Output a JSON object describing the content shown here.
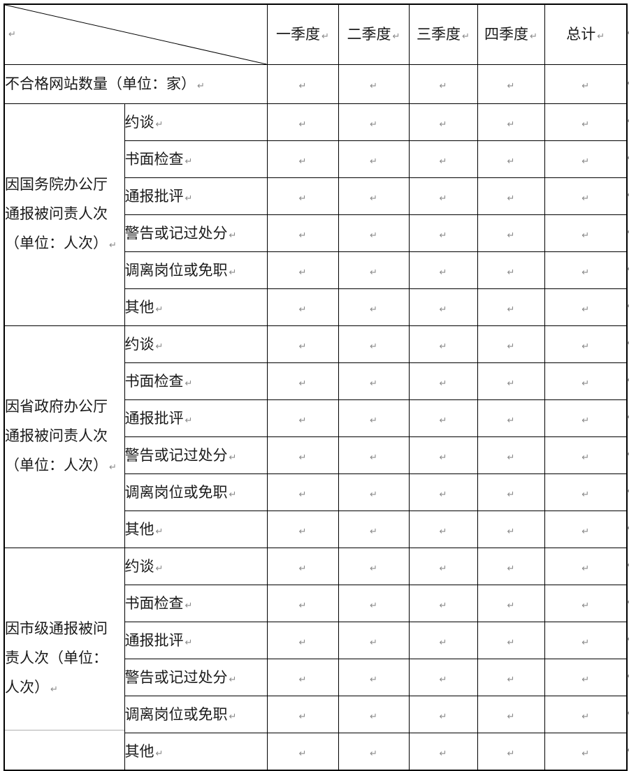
{
  "table": {
    "cell_mark": "↵",
    "quarters": [
      "一季度",
      "二季度",
      "三季度",
      "四季度",
      "总计"
    ],
    "unqualified_row": {
      "label": "不合格网站数量（单位：家）"
    },
    "groups": [
      {
        "label": "因国务院办公厅通报被问责人次（单位：人次）",
        "lines": [
          "因国务院办公厅",
          "通报被问责人次",
          "（单位：人次）"
        ]
      },
      {
        "label": "因省政府办公厅通报被问责人次（单位：人次）",
        "lines": [
          "因省政府办公厅",
          "通报被问责人次",
          "（单位：人次）"
        ]
      },
      {
        "label": "因市级通报被问责人次（单位：人次）",
        "lines": [
          "因市级通报被问",
          "责人次（单位：",
          "人次）"
        ]
      }
    ],
    "subcategories": [
      "约谈",
      "书面检查",
      "通报批评",
      "警告或记过处分",
      "调离岗位或免职",
      "其他"
    ]
  },
  "colors": {
    "border": "#000000",
    "light_grid": "#b0b0b0",
    "mark": "#8a8a8a",
    "text": "#1a1a1a",
    "background": "#ffffff"
  }
}
